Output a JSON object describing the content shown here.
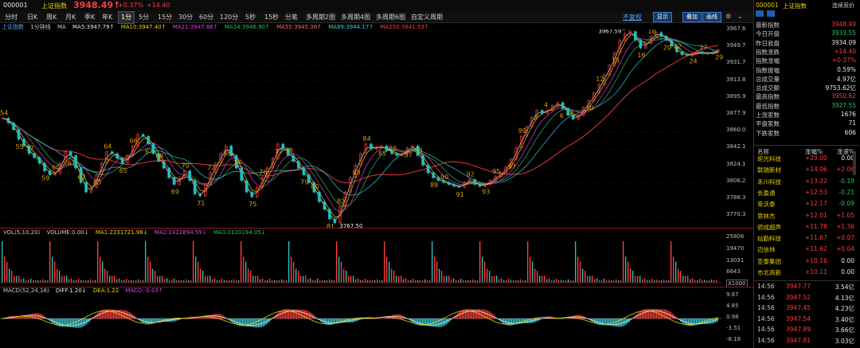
{
  "header": {
    "code": "000001",
    "name": "上证指数",
    "price": "3948.49↑",
    "change_pct": "+0.37%",
    "change": "+14.40"
  },
  "periods": [
    "分时",
    "日K",
    "周K",
    "月K",
    "季K",
    "年K",
    "1分",
    "5分",
    "15分",
    "30分",
    "60分",
    "120分",
    "5秒",
    "15秒",
    "分笔",
    "多周期2图",
    "多周期4图",
    "多周期6图",
    "自定义周期"
  ],
  "active_period": "1分",
  "chart_controls": {
    "restore": "不复权",
    "display": "显示",
    "overlay": "叠加",
    "draw": "画线"
  },
  "ma_line": {
    "label1": "上证指数",
    "label2": "1分钟线",
    "label3": "MA",
    "items": [
      {
        "text": "MA5:3947.79↑",
        "color": "#e8e8e8"
      },
      {
        "text": "MA10:3947.40↑",
        "color": "#f2d400"
      },
      {
        "text": "MA21:3947.86↑",
        "color": "#e040e0"
      },
      {
        "text": "MA34:3946.90↑",
        "color": "#21c55d"
      },
      {
        "text": "MA55:3945.36↑",
        "color": "#ff6a6a"
      },
      {
        "text": "MA89:3944.17↑",
        "color": "#35d0e0"
      },
      {
        "text": "MA250:3941.53↑",
        "color": "#ff3b3b"
      }
    ]
  },
  "vol_line": {
    "label": "VOL(5,10,20)",
    "volume": "VOLUME:0.00↓",
    "items": [
      {
        "text": "MA1:2231721.98↓",
        "color": "#f2d400"
      },
      {
        "text": "MA2:2422894.59↓",
        "color": "#e040e0"
      },
      {
        "text": "MA3:2120194.05↓",
        "color": "#21c55d"
      }
    ]
  },
  "macd_line": {
    "label": "MACD(52,24,18)",
    "items": [
      {
        "text": "DIFF:1.20↓",
        "color": "#e8e8e8"
      },
      {
        "text": "DEA:1.22",
        "color": "#f2d400"
      },
      {
        "text": "MACD:-0.03↑",
        "color": "#e040e0"
      }
    ]
  },
  "price_axis": [
    "3967.6",
    "3949.7",
    "3931.7",
    "3913.8",
    "3895.9",
    "3877.9",
    "3860.0",
    "3842.1",
    "3824.1",
    "3806.2",
    "3788.3",
    "3770.3"
  ],
  "vol_axis": [
    "25806",
    "19470",
    "13031",
    "6643",
    "X1000"
  ],
  "macd_axis": [
    "9.87",
    "4.85",
    "0.98",
    "-3.51",
    "-8.18"
  ],
  "price_annotations": {
    "high": "3967.59",
    "low": "3767.50"
  },
  "wave_labels": [
    "54",
    "55",
    "57",
    "59",
    "60",
    "61",
    "62",
    "63",
    "64",
    "65",
    "66",
    "67",
    "68",
    "69",
    "70",
    "71",
    "72",
    "73",
    "74",
    "75",
    "76",
    "77",
    "78",
    "79",
    "80",
    "81",
    "82",
    "83",
    "84",
    "85",
    "86",
    "87",
    "88",
    "89",
    "90",
    "91",
    "92",
    "93",
    "95",
    "97",
    "99",
    "2",
    "4",
    "6",
    "8",
    "10",
    "12",
    "13",
    "14",
    "16",
    "18",
    "20",
    "22",
    "24",
    "27",
    "29"
  ],
  "chart_data": {
    "type": "line",
    "title": "上证指数 1分钟线",
    "ylim": [
      3770.3,
      3967.6
    ],
    "price_series": [
      3877,
      3872,
      3865,
      3855,
      3848,
      3840,
      3836,
      3830,
      3822,
      3818,
      3820,
      3830,
      3842,
      3838,
      3825,
      3810,
      3800,
      3805,
      3818,
      3830,
      3842,
      3840,
      3835,
      3830,
      3838,
      3848,
      3860,
      3858,
      3850,
      3840,
      3832,
      3825,
      3815,
      3808,
      3815,
      3822,
      3812,
      3798,
      3796,
      3808,
      3820,
      3830,
      3840,
      3848,
      3838,
      3825,
      3812,
      3800,
      3795,
      3805,
      3815,
      3825,
      3835,
      3850,
      3845,
      3838,
      3832,
      3825,
      3818,
      3810,
      3800,
      3790,
      3782,
      3772,
      3768,
      3785,
      3800,
      3815,
      3828,
      3840,
      3850,
      3845,
      3846,
      3848,
      3843,
      3840,
      3838,
      3840,
      3846,
      3848,
      3838,
      3828,
      3820,
      3815,
      3812,
      3810,
      3808,
      3806,
      3805,
      3810,
      3813,
      3808,
      3806,
      3808,
      3812,
      3816,
      3820,
      3826,
      3834,
      3846,
      3858,
      3868,
      3878,
      3885,
      3882,
      3885,
      3890,
      3893,
      3887,
      3880,
      3876,
      3880,
      3888,
      3895,
      3903,
      3912,
      3922,
      3932,
      3945,
      3958,
      3965,
      3967,
      3958,
      3950,
      3955,
      3962,
      3966,
      3962,
      3958,
      3952,
      3946,
      3943,
      3942,
      3944,
      3946,
      3945,
      3944,
      3946,
      3948
    ],
    "volume_axis_unit": "X1000",
    "volume_ma": {
      "MA1": 2231721.98,
      "MA2": 2422894.59,
      "MA3": 2120194.05
    },
    "macd": {
      "DIFF": 1.2,
      "DEA": 1.22,
      "MACD": -0.03
    }
  },
  "right_panel": {
    "code": "000001",
    "name": "上证指数",
    "link": "连续竞价",
    "stats": [
      {
        "k": "最新指数",
        "v": "3948.49",
        "c": "red"
      },
      {
        "k": "今日开盘",
        "v": "3933.55",
        "c": "green"
      },
      {
        "k": "昨日收盘",
        "v": "3934.09",
        "c": "white"
      },
      {
        "k": "指数涨跌",
        "v": "+14.40",
        "c": "red"
      },
      {
        "k": "指数涨幅",
        "v": "+0.37%",
        "c": "red"
      },
      {
        "k": "指数振幅",
        "v": "0.59%",
        "c": "white"
      },
      {
        "k": "总成交量",
        "v": "4.97亿",
        "c": "white"
      },
      {
        "k": "总成交额",
        "v": "9753.62亿",
        "c": "white"
      },
      {
        "k": "最高指数",
        "v": "3950.62",
        "c": "red"
      },
      {
        "k": "最低指数",
        "v": "3927.55",
        "c": "green"
      },
      {
        "k": "上涨家数",
        "v": "1676",
        "c": "white"
      },
      {
        "k": "平盘家数",
        "v": "71",
        "c": "white"
      },
      {
        "k": "下跌家数",
        "v": "606",
        "c": "white"
      }
    ],
    "rank_headers": [
      "名称",
      "涨幅%",
      "涨速%"
    ],
    "stocks": [
      {
        "n": "炬光科技",
        "p": "+20.00",
        "s": "0.00",
        "sc": "white"
      },
      {
        "n": "联瑞新材",
        "p": "+14.06",
        "s": "+2.06",
        "sc": "red"
      },
      {
        "n": "禾川科技",
        "p": "+13.22",
        "s": "-0.19",
        "sc": "green"
      },
      {
        "n": "长盈通",
        "p": "+12.53",
        "s": "-0.21",
        "sc": "green"
      },
      {
        "n": "菲沃泰",
        "p": "+12.17",
        "s": "-0.09",
        "sc": "green"
      },
      {
        "n": "思林杰",
        "p": "+12.01",
        "s": "+1.05",
        "sc": "red"
      },
      {
        "n": "骄成超声",
        "p": "+11.78",
        "s": "+1.36",
        "sc": "red"
      },
      {
        "n": "灿勤科技",
        "p": "+11.67",
        "s": "+0.07",
        "sc": "red"
      },
      {
        "n": "迈信林",
        "p": "+11.62",
        "s": "+0.04",
        "sc": "red"
      },
      {
        "n": "亚泰集团",
        "p": "+10.16",
        "s": "0.00",
        "sc": "white"
      },
      {
        "n": "市北高新",
        "p": "+10.11",
        "s": "0.00",
        "sc": "white"
      }
    ],
    "ticks": [
      {
        "t": "14:56",
        "p": "3947.77",
        "v": "3.54亿"
      },
      {
        "t": "14:56",
        "p": "3947.52",
        "v": "4.13亿"
      },
      {
        "t": "14:56",
        "p": "3947.45",
        "v": "4.23亿"
      },
      {
        "t": "14:56",
        "p": "3947.54",
        "v": "3.40亿"
      },
      {
        "t": "14:56",
        "p": "3947.89",
        "v": "3.66亿"
      },
      {
        "t": "14:56",
        "p": "3947.81",
        "v": "3.03亿"
      }
    ]
  }
}
